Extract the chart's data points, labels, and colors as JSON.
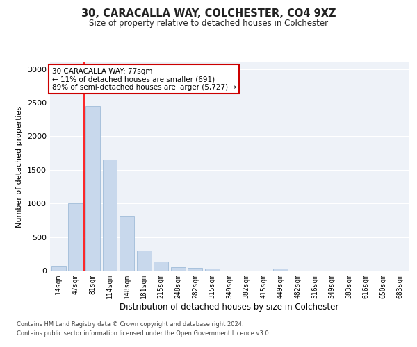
{
  "title1": "30, CARACALLA WAY, COLCHESTER, CO4 9XZ",
  "title2": "Size of property relative to detached houses in Colchester",
  "xlabel": "Distribution of detached houses by size in Colchester",
  "ylabel": "Number of detached properties",
  "categories": [
    "14sqm",
    "47sqm",
    "81sqm",
    "114sqm",
    "148sqm",
    "181sqm",
    "215sqm",
    "248sqm",
    "282sqm",
    "315sqm",
    "349sqm",
    "382sqm",
    "415sqm",
    "449sqm",
    "482sqm",
    "516sqm",
    "549sqm",
    "583sqm",
    "616sqm",
    "650sqm",
    "683sqm"
  ],
  "values": [
    60,
    1000,
    2450,
    1650,
    820,
    300,
    130,
    55,
    45,
    30,
    0,
    0,
    0,
    35,
    0,
    0,
    0,
    0,
    0,
    0,
    0
  ],
  "bar_color": "#c8d8ec",
  "bar_edge_color": "#a0bcd8",
  "red_line_index": 2,
  "annotation_text": "30 CARACALLA WAY: 77sqm\n← 11% of detached houses are smaller (691)\n89% of semi-detached houses are larger (5,727) →",
  "annotation_box_color": "#ffffff",
  "annotation_box_edge_color": "#cc0000",
  "ylim": [
    0,
    3100
  ],
  "yticks": [
    0,
    500,
    1000,
    1500,
    2000,
    2500,
    3000
  ],
  "footer1": "Contains HM Land Registry data © Crown copyright and database right 2024.",
  "footer2": "Contains public sector information licensed under the Open Government Licence v3.0.",
  "bg_color": "#ffffff",
  "plot_bg_color": "#eef2f8"
}
